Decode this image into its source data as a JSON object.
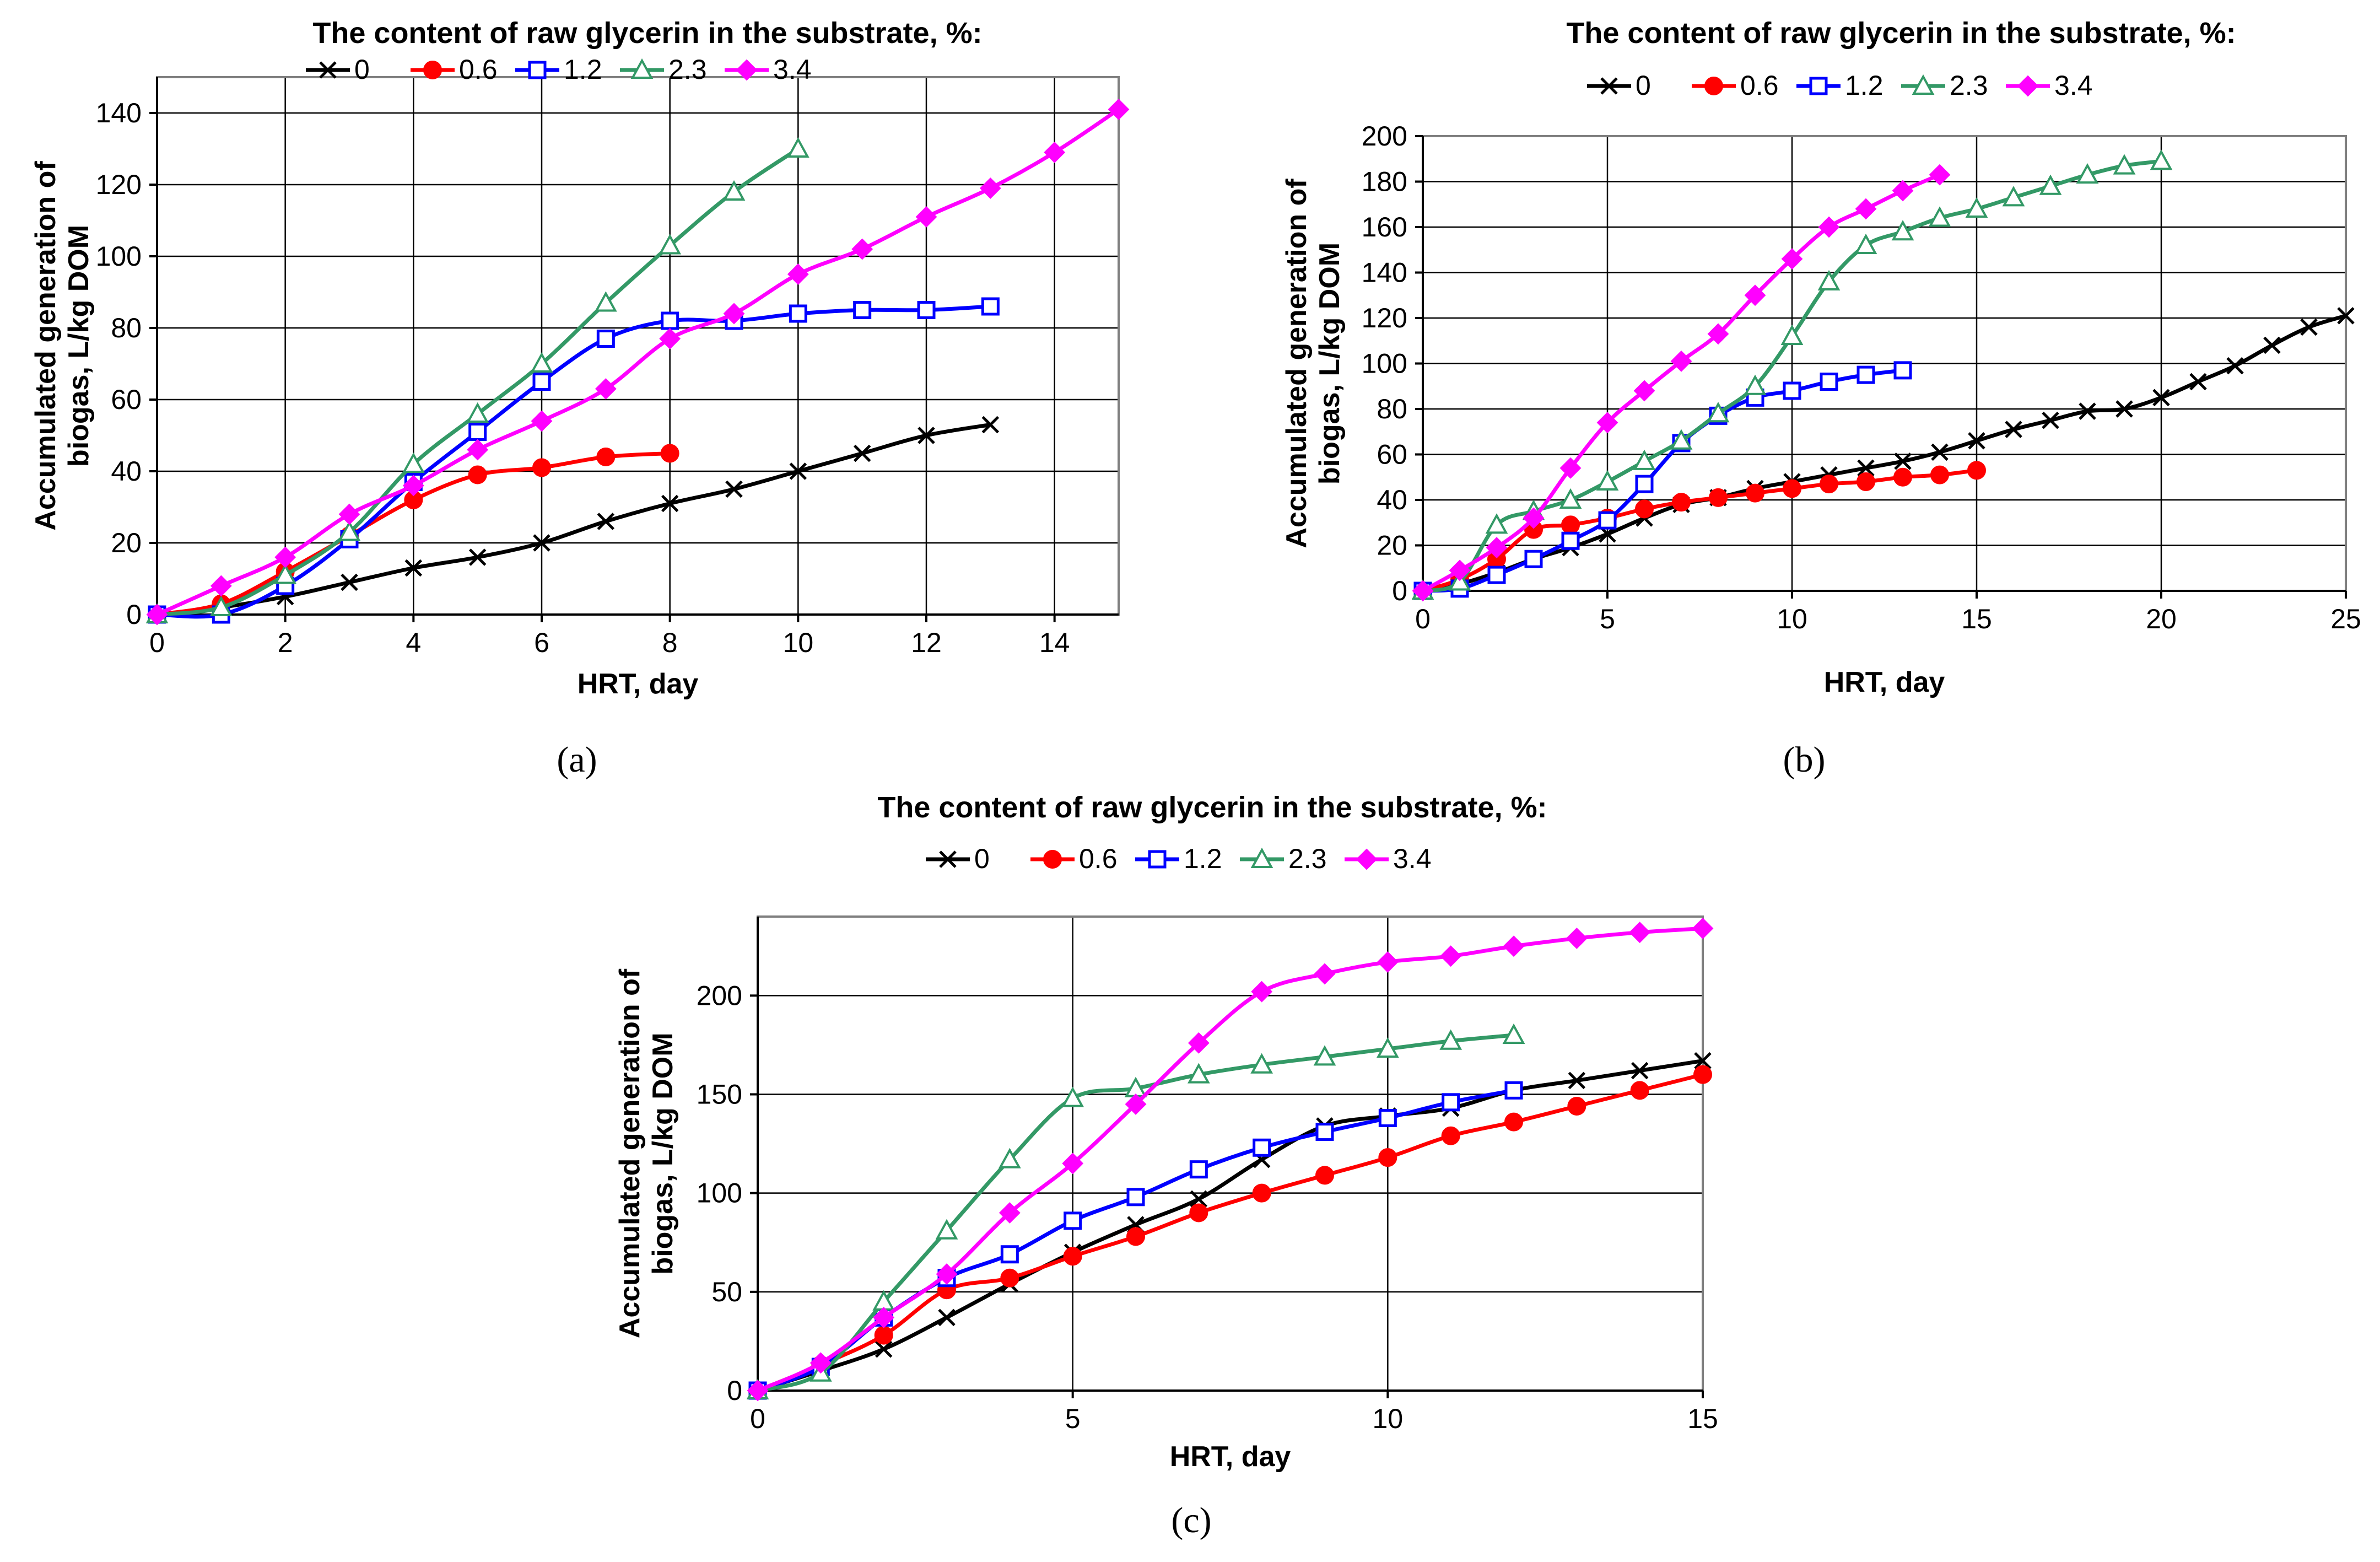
{
  "chart_data": [
    {
      "type": "line",
      "title": "The content of raw glycerin in the substrate, %:",
      "panel_label": "(a)",
      "xlabel": "HRT, day",
      "ylabel_lines": [
        "Accumulated generation of",
        "biogas, L/kg DOM"
      ],
      "xlim": [
        0,
        15
      ],
      "ylim": [
        0,
        150
      ],
      "xticks": [
        0,
        2,
        4,
        6,
        8,
        10,
        12,
        14
      ],
      "yticks": [
        0,
        20,
        40,
        60,
        80,
        100,
        120,
        140
      ],
      "grid": true,
      "legend_position": "top",
      "series": [
        {
          "name": "0",
          "color": "#000000",
          "marker": "x",
          "x": [
            0,
            1,
            2,
            3,
            4,
            5,
            6,
            7,
            8,
            9,
            10,
            11,
            12,
            13
          ],
          "y": [
            0,
            2,
            5,
            9,
            13,
            16,
            20,
            26,
            31,
            35,
            40,
            45,
            50,
            53
          ]
        },
        {
          "name": "0.6",
          "color": "#ff0000",
          "marker": "circle",
          "x": [
            0,
            1,
            2,
            3,
            4,
            5,
            6,
            7,
            8
          ],
          "y": [
            0,
            3,
            12,
            22,
            32,
            39,
            41,
            44,
            45
          ]
        },
        {
          "name": "1.2",
          "color": "#0000ff",
          "marker": "square",
          "x": [
            0,
            1,
            2,
            3,
            4,
            5,
            6,
            7,
            8,
            9,
            10,
            11,
            12,
            13
          ],
          "y": [
            0,
            0,
            8,
            21,
            37,
            51,
            65,
            77,
            82,
            82,
            84,
            85,
            85,
            86
          ]
        },
        {
          "name": "2.3",
          "color": "#339966",
          "marker": "triangle",
          "x": [
            0,
            1,
            2,
            3,
            4,
            5,
            6,
            7,
            8,
            9,
            10
          ],
          "y": [
            0,
            2,
            11,
            23,
            42,
            56,
            70,
            87,
            103,
            118,
            130
          ]
        },
        {
          "name": "3.4",
          "color": "#ff00ff",
          "marker": "diamond",
          "x": [
            0,
            1,
            2,
            3,
            4,
            5,
            6,
            7,
            8,
            9,
            10,
            11,
            12,
            13,
            14,
            15
          ],
          "y": [
            0,
            8,
            16,
            28,
            36,
            46,
            54,
            63,
            77,
            84,
            95,
            102,
            111,
            119,
            129,
            141
          ]
        }
      ]
    },
    {
      "type": "line",
      "title": "The content of raw glycerin in the substrate, %:",
      "panel_label": "(b)",
      "xlabel": "HRT, day",
      "ylabel_lines": [
        "Accumulated generation of",
        "biogas, L/kg DOM"
      ],
      "xlim": [
        0,
        25
      ],
      "ylim": [
        0,
        200
      ],
      "xticks": [
        0,
        5,
        10,
        15,
        20,
        25
      ],
      "yticks": [
        0,
        20,
        40,
        60,
        80,
        100,
        120,
        140,
        160,
        180,
        200
      ],
      "grid": true,
      "legend_position": "top",
      "series": [
        {
          "name": "0",
          "color": "#000000",
          "marker": "x",
          "x": [
            0,
            1,
            2,
            3,
            4,
            5,
            6,
            7,
            8,
            9,
            10,
            11,
            12,
            13,
            14,
            15,
            16,
            17,
            18,
            19,
            20,
            21,
            22,
            23,
            24,
            25
          ],
          "y": [
            0,
            3,
            8,
            14,
            19,
            25,
            32,
            38,
            41,
            45,
            48,
            51,
            54,
            57,
            61,
            66,
            71,
            75,
            79,
            80,
            85,
            92,
            99,
            108,
            116,
            121
          ]
        },
        {
          "name": "0.6",
          "color": "#ff0000",
          "marker": "circle",
          "x": [
            0,
            1,
            2,
            3,
            4,
            5,
            6,
            7,
            8,
            9,
            10,
            11,
            12,
            13,
            14,
            15
          ],
          "y": [
            0,
            5,
            14,
            27,
            29,
            32,
            36,
            39,
            41,
            43,
            45,
            47,
            48,
            50,
            51,
            53
          ]
        },
        {
          "name": "1.2",
          "color": "#0000ff",
          "marker": "square",
          "x": [
            0,
            1,
            2,
            3,
            4,
            5,
            6,
            7,
            8,
            9,
            10,
            11,
            12,
            13
          ],
          "y": [
            0,
            1,
            7,
            14,
            22,
            31,
            47,
            65,
            77,
            85,
            88,
            92,
            95,
            97
          ]
        },
        {
          "name": "2.3",
          "color": "#339966",
          "marker": "triangle",
          "x": [
            0,
            1,
            2,
            3,
            4,
            5,
            6,
            7,
            8,
            9,
            10,
            11,
            12,
            13,
            14,
            15,
            16,
            17,
            18,
            19,
            20
          ],
          "y": [
            0,
            4,
            29,
            35,
            40,
            48,
            57,
            66,
            78,
            90,
            112,
            136,
            152,
            158,
            164,
            168,
            173,
            178,
            183,
            187,
            189
          ]
        },
        {
          "name": "3.4",
          "color": "#ff00ff",
          "marker": "diamond",
          "x": [
            0,
            1,
            2,
            3,
            4,
            5,
            6,
            7,
            8,
            9,
            10,
            11,
            12,
            13,
            14
          ],
          "y": [
            0,
            9,
            19,
            32,
            54,
            74,
            88,
            101,
            113,
            130,
            146,
            160,
            168,
            176,
            183
          ]
        }
      ]
    },
    {
      "type": "line",
      "title": "The content of raw glycerin in the substrate, %:",
      "panel_label": "(c)",
      "xlabel": "HRT, day",
      "ylabel_lines": [
        "Accumulated generation of",
        "biogas, L/kg DOM"
      ],
      "xlim": [
        0,
        15
      ],
      "ylim": [
        0,
        240
      ],
      "xticks": [
        0,
        5,
        10,
        15
      ],
      "yticks": [
        0,
        50,
        100,
        150,
        200
      ],
      "grid": true,
      "legend_position": "top",
      "series": [
        {
          "name": "0",
          "color": "#000000",
          "marker": "x",
          "x": [
            0,
            1,
            2,
            3,
            4,
            5,
            6,
            7,
            8,
            9,
            10,
            11,
            12,
            13,
            14,
            15
          ],
          "y": [
            0,
            10,
            21,
            37,
            54,
            70,
            84,
            97,
            117,
            134,
            139,
            143,
            152,
            157,
            162,
            167
          ]
        },
        {
          "name": "0.6",
          "color": "#ff0000",
          "marker": "circle",
          "x": [
            0,
            1,
            2,
            3,
            4,
            5,
            6,
            7,
            8,
            9,
            10,
            11,
            12,
            13,
            14,
            15
          ],
          "y": [
            0,
            13,
            28,
            51,
            57,
            68,
            78,
            90,
            100,
            109,
            118,
            129,
            136,
            144,
            152,
            160
          ]
        },
        {
          "name": "1.2",
          "color": "#0000ff",
          "marker": "square",
          "x": [
            0,
            1,
            2,
            3,
            4,
            5,
            6,
            7,
            8,
            9,
            10,
            11,
            12
          ],
          "y": [
            0,
            12,
            37,
            57,
            69,
            86,
            98,
            112,
            123,
            131,
            138,
            146,
            152
          ]
        },
        {
          "name": "2.3",
          "color": "#339966",
          "marker": "triangle",
          "x": [
            0,
            1,
            2,
            3,
            4,
            5,
            6,
            7,
            8,
            9,
            10,
            11,
            12
          ],
          "y": [
            0,
            9,
            45,
            81,
            117,
            148,
            153,
            160,
            165,
            169,
            173,
            177,
            180
          ]
        },
        {
          "name": "3.4",
          "color": "#ff00ff",
          "marker": "diamond",
          "x": [
            0,
            1,
            2,
            3,
            4,
            5,
            6,
            7,
            8,
            9,
            10,
            11,
            12,
            13,
            14,
            15
          ],
          "y": [
            0,
            14,
            37,
            59,
            90,
            115,
            145,
            176,
            202,
            211,
            217,
            220,
            225,
            229,
            232,
            234
          ]
        }
      ]
    }
  ]
}
